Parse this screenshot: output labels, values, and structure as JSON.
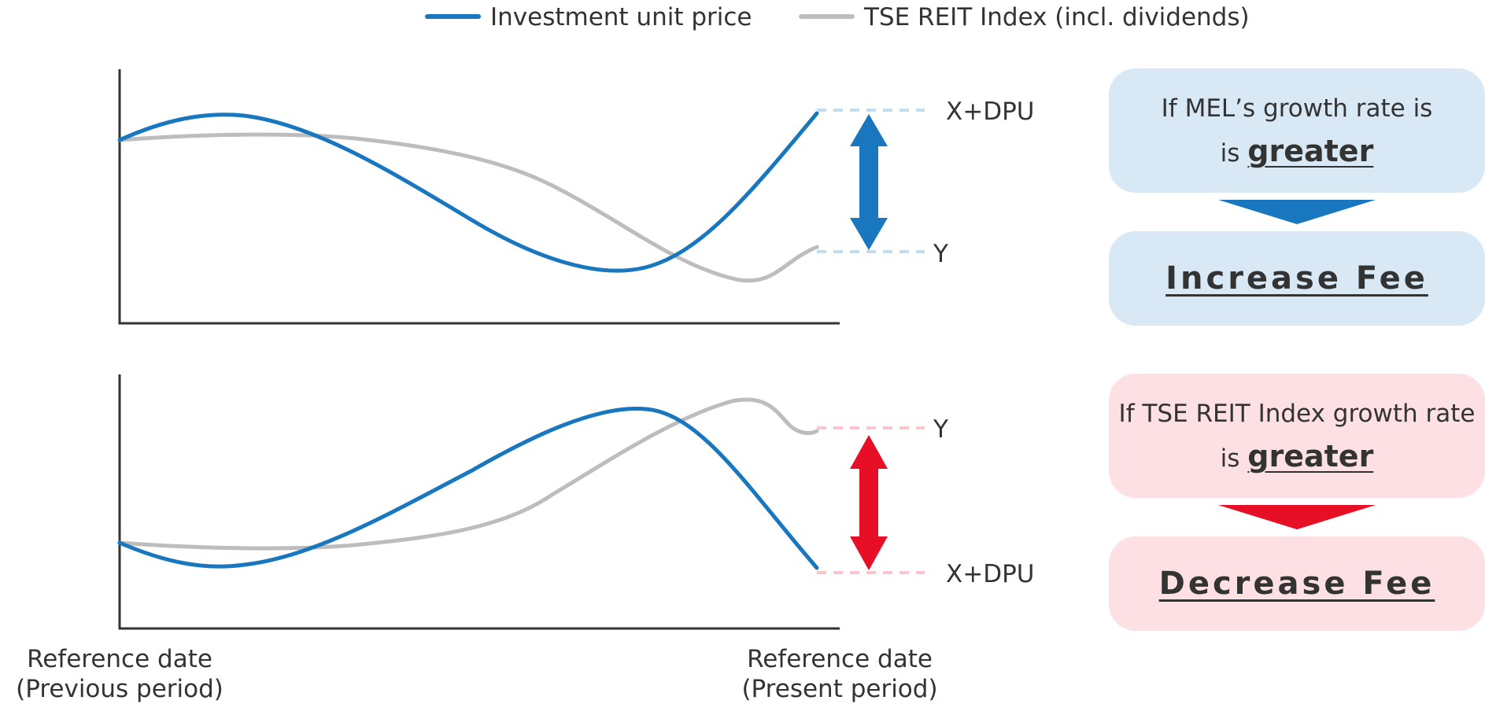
{
  "legend": {
    "series_a": "Investment unit price",
    "series_b": "TSE REIT Index (incl. dividends)"
  },
  "colors": {
    "investment": "#1877be",
    "index": "#bdbdbd",
    "axis": "#333333",
    "blue_box": "#d8e8f4",
    "blue_dash": "#c3dcf0",
    "red": "#e60f25",
    "red_box": "#fde0e4",
    "red_dash": "#f9c6cf"
  },
  "top_panel": {
    "upper_label": "X+DPU",
    "lower_label": "Y",
    "condition_line1": "If MEL’s growth rate is",
    "condition_prefix": "is",
    "condition_emphasis": "greater",
    "result": "Increase Fee"
  },
  "bottom_panel": {
    "upper_label": "Y",
    "lower_label": "X+DPU",
    "condition_line1": "If TSE REIT Index growth rate",
    "condition_prefix": "is",
    "condition_emphasis": "greater",
    "result": "Decrease Fee"
  },
  "x_axis": {
    "start_line1": "Reference date",
    "start_line2": "(Previous period)",
    "end_line1": "Reference date",
    "end_line2": "(Present period)"
  }
}
